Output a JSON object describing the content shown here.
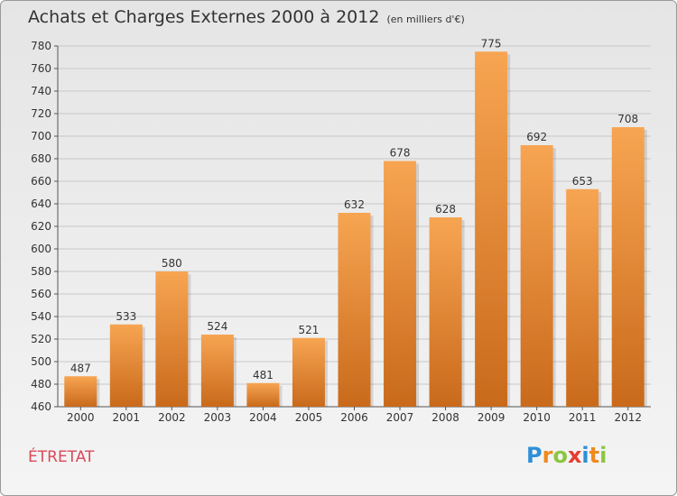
{
  "title": "Achats et Charges Externes 2000 à 2012",
  "subtitle": "(en milliers d'€)",
  "commune": "ÉTRETAT",
  "brand": {
    "letters": [
      "P",
      "r",
      "o",
      "x",
      "i",
      "t",
      "i"
    ],
    "colors": [
      "#2f8fd6",
      "#f08a1c",
      "#8cc63f",
      "#e63c2f",
      "#2f8fd6",
      "#f08a1c",
      "#8cc63f"
    ]
  },
  "colors": {
    "bar_top": "#f7a552",
    "bar_bottom": "#c96a1b",
    "title": "#333333",
    "commune": "#d94a5a"
  },
  "chart_data": {
    "type": "bar",
    "categories": [
      "2000",
      "2001",
      "2002",
      "2003",
      "2004",
      "2005",
      "2006",
      "2007",
      "2008",
      "2009",
      "2010",
      "2011",
      "2012"
    ],
    "values": [
      487,
      533,
      580,
      524,
      481,
      521,
      632,
      678,
      628,
      775,
      692,
      653,
      708
    ],
    "ylim": [
      460,
      780
    ],
    "yticks": [
      460,
      480,
      500,
      520,
      540,
      560,
      580,
      600,
      620,
      640,
      660,
      680,
      700,
      720,
      740,
      760,
      780
    ],
    "title": "Achats et Charges Externes 2000 à 2012",
    "xlabel": "",
    "ylabel": "",
    "grid": true,
    "data_labels": true
  }
}
